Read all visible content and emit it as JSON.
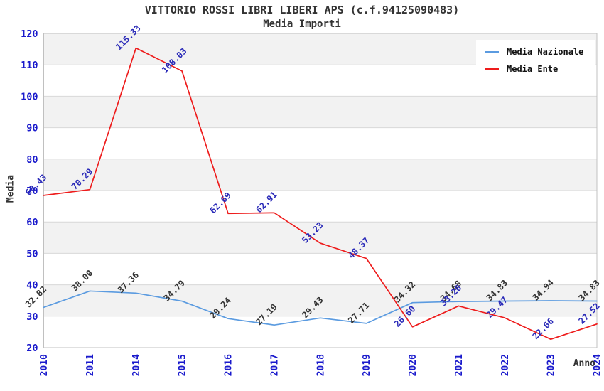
{
  "chart_data": {
    "type": "line",
    "title": "VITTORIO ROSSI LIBRI LIBERI APS (c.f.94125090483)",
    "subtitle": "Media Importi",
    "xlabel": "Anno",
    "ylabel": "Media",
    "categories": [
      "2010",
      "2011",
      "2014",
      "2015",
      "2016",
      "2017",
      "2018",
      "2019",
      "2020",
      "2021",
      "2022",
      "2023",
      "2024"
    ],
    "series": [
      {
        "name": "Media Nazionale",
        "color": "#5b9be0",
        "label_color": "#333333",
        "values": [
          32.82,
          38.0,
          37.36,
          34.79,
          29.24,
          27.19,
          29.43,
          27.71,
          34.32,
          34.68,
          34.83,
          34.94,
          34.83
        ]
      },
      {
        "name": "Media Ente",
        "color": "#ee1c1c",
        "label_color": "#2a2ab8",
        "values": [
          68.43,
          70.29,
          115.33,
          108.03,
          62.69,
          62.91,
          53.23,
          48.37,
          26.6,
          33.26,
          29.47,
          22.66,
          27.52
        ]
      }
    ],
    "ylim": [
      20,
      120
    ],
    "ytick_step": 10,
    "grid": "horizontal-bands",
    "legend_position": "top-right",
    "colors": {
      "tick_label": "#1a1acc",
      "band": "#f2f2f2",
      "grid_line": "#d8d8d8",
      "plot_border": "#c0c0c0",
      "text": "#333333",
      "background": "#ffffff"
    }
  }
}
